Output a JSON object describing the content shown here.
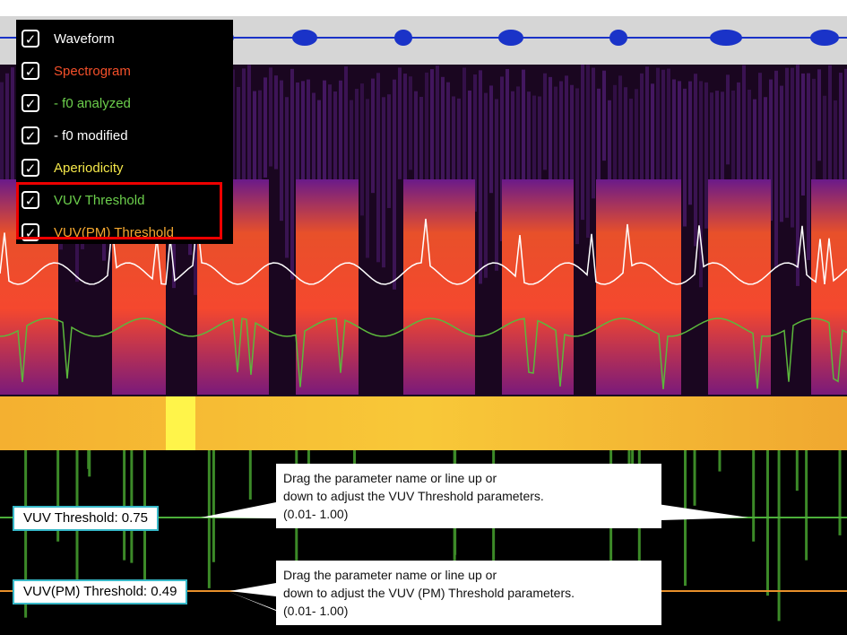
{
  "menu": {
    "items": [
      {
        "label": "Waveform"
      },
      {
        "label": "Spectrogram"
      },
      {
        "label": "- f0 analyzed"
      },
      {
        "label": "- f0 modified"
      },
      {
        "label": "Aperiodicity"
      },
      {
        "label": "VUV Threshold"
      },
      {
        "label": "VUV(PM) Threshold"
      }
    ]
  },
  "thresholds": [
    {
      "label": "VUV Threshold: 0.75"
    },
    {
      "label": "VUV(PM) Threshold: 0.49"
    }
  ],
  "callouts": [
    {
      "lines": [
        "Drag the parameter name or line up or",
        "down to adjust the VUV Threshold parameters.",
        "(0.01- 1.00)"
      ]
    },
    {
      "lines": [
        "Drag the parameter name or line up or",
        "down to adjust the VUV (PM) Threshold parameters.",
        "(0.01- 1.00)"
      ]
    }
  ]
}
